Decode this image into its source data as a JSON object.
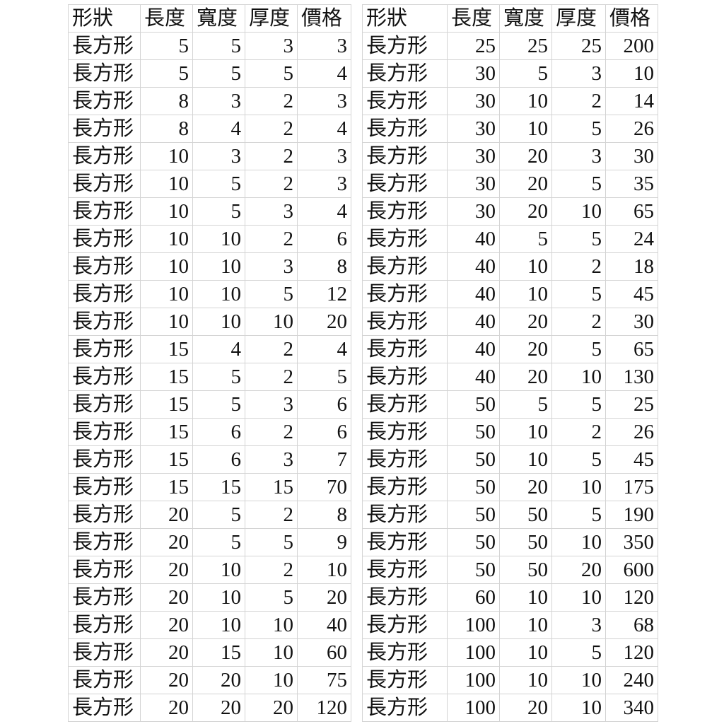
{
  "headers": [
    "形狀",
    "長度",
    "寬度",
    "厚度",
    "價格"
  ],
  "left_rows": [
    [
      "長方形",
      5,
      5,
      3,
      3
    ],
    [
      "長方形",
      5,
      5,
      5,
      4
    ],
    [
      "長方形",
      8,
      3,
      2,
      3
    ],
    [
      "長方形",
      8,
      4,
      2,
      4
    ],
    [
      "長方形",
      10,
      3,
      2,
      3
    ],
    [
      "長方形",
      10,
      5,
      2,
      3
    ],
    [
      "長方形",
      10,
      5,
      3,
      4
    ],
    [
      "長方形",
      10,
      10,
      2,
      6
    ],
    [
      "長方形",
      10,
      10,
      3,
      8
    ],
    [
      "長方形",
      10,
      10,
      5,
      12
    ],
    [
      "長方形",
      10,
      10,
      10,
      20
    ],
    [
      "長方形",
      15,
      4,
      2,
      4
    ],
    [
      "長方形",
      15,
      5,
      2,
      5
    ],
    [
      "長方形",
      15,
      5,
      3,
      6
    ],
    [
      "長方形",
      15,
      6,
      2,
      6
    ],
    [
      "長方形",
      15,
      6,
      3,
      7
    ],
    [
      "長方形",
      15,
      15,
      15,
      70
    ],
    [
      "長方形",
      20,
      5,
      2,
      8
    ],
    [
      "長方形",
      20,
      5,
      5,
      9
    ],
    [
      "長方形",
      20,
      10,
      2,
      10
    ],
    [
      "長方形",
      20,
      10,
      5,
      20
    ],
    [
      "長方形",
      20,
      10,
      10,
      40
    ],
    [
      "長方形",
      20,
      15,
      10,
      60
    ],
    [
      "長方形",
      20,
      20,
      10,
      75
    ],
    [
      "長方形",
      20,
      20,
      20,
      120
    ]
  ],
  "right_rows": [
    [
      "長方形",
      25,
      25,
      25,
      200
    ],
    [
      "長方形",
      30,
      5,
      3,
      10
    ],
    [
      "長方形",
      30,
      10,
      2,
      14
    ],
    [
      "長方形",
      30,
      10,
      5,
      26
    ],
    [
      "長方形",
      30,
      20,
      3,
      30
    ],
    [
      "長方形",
      30,
      20,
      5,
      35
    ],
    [
      "長方形",
      30,
      20,
      10,
      65
    ],
    [
      "長方形",
      40,
      5,
      5,
      24
    ],
    [
      "長方形",
      40,
      10,
      2,
      18
    ],
    [
      "長方形",
      40,
      10,
      5,
      45
    ],
    [
      "長方形",
      40,
      20,
      2,
      30
    ],
    [
      "長方形",
      40,
      20,
      5,
      65
    ],
    [
      "長方形",
      40,
      20,
      10,
      130
    ],
    [
      "長方形",
      50,
      5,
      5,
      25
    ],
    [
      "長方形",
      50,
      10,
      2,
      26
    ],
    [
      "長方形",
      50,
      10,
      5,
      45
    ],
    [
      "長方形",
      50,
      20,
      10,
      175
    ],
    [
      "長方形",
      50,
      50,
      5,
      190
    ],
    [
      "長方形",
      50,
      50,
      10,
      350
    ],
    [
      "長方形",
      50,
      50,
      20,
      600
    ],
    [
      "長方形",
      60,
      10,
      10,
      120
    ],
    [
      "長方形",
      100,
      10,
      3,
      68
    ],
    [
      "長方形",
      100,
      10,
      5,
      120
    ],
    [
      "長方形",
      100,
      10,
      10,
      240
    ],
    [
      "長方形",
      100,
      20,
      10,
      340
    ]
  ]
}
